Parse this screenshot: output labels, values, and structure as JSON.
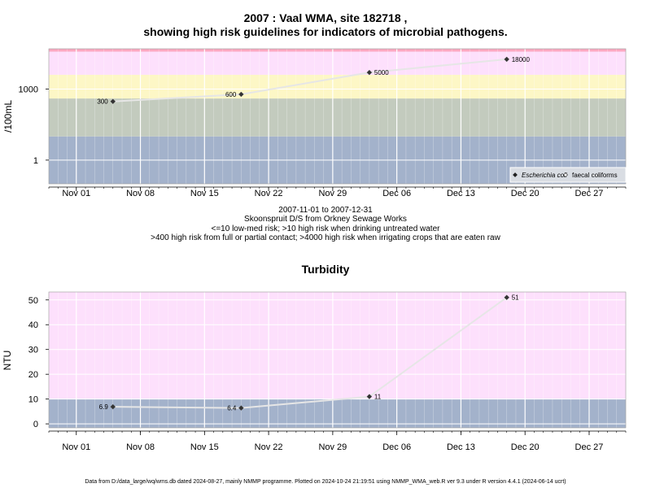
{
  "header": {
    "title_line1": "2007 : Vaal WMA, site 182718 ,",
    "title_line2": "showing high risk guidelines for indicators of microbial pathogens."
  },
  "captions": {
    "date_range": "2007-11-01 to 2007-12-31",
    "site_name": "Skoonspruit D/S from Orkney Sewage Works",
    "risk_line1": "<=10 low-med risk; >10 high risk when drinking untreated water",
    "risk_line2": ">400 high risk from full or partial contact; >4000 high risk when irrigating crops that are eaten raw"
  },
  "footer": "Data from D:/data_large/wq/wms.db dated 2024-08-27, mainly NMMP programme. Plotted on 2024-10-24 21:19:51 using NMMP_WMA_web.R ver 9.3 under R version 4.4.1 (2024-06-14 ucrt)",
  "colors": {
    "band_blue": "#a3b2cb",
    "band_grey": "#c3cbbe",
    "band_yellow": "#fdf7c6",
    "band_pink": "#fde0fc",
    "band_red": "#fca8c1",
    "line": "#e6e6e6",
    "grid": "#ffffff"
  },
  "chart_data": [
    {
      "type": "line",
      "title": "",
      "xlabel": "",
      "ylabel": "/100mL",
      "yscale": "log10",
      "xlim": [
        "2007-10-29",
        "2007-12-31"
      ],
      "x_ticks": [
        {
          "date": "2007-11-01",
          "label": "Nov 01"
        },
        {
          "date": "2007-11-08",
          "label": "Nov 08"
        },
        {
          "date": "2007-11-15",
          "label": "Nov 15"
        },
        {
          "date": "2007-11-22",
          "label": "Nov 22"
        },
        {
          "date": "2007-11-29",
          "label": "Nov 29"
        },
        {
          "date": "2007-12-06",
          "label": "Dec 06"
        },
        {
          "date": "2007-12-13",
          "label": "Dec 13"
        },
        {
          "date": "2007-12-20",
          "label": "Dec 20"
        },
        {
          "date": "2007-12-27",
          "label": "Dec 27"
        }
      ],
      "y_ticks": [
        {
          "value": 1,
          "label": "1"
        },
        {
          "value": 1000,
          "label": "1000"
        }
      ],
      "bands": [
        {
          "from": 0.1,
          "to": 10,
          "color": "#a3b2cb"
        },
        {
          "from": 10,
          "to": 400,
          "color": "#c3cbbe"
        },
        {
          "from": 400,
          "to": 4000,
          "color": "#fdf7c6"
        },
        {
          "from": 4000,
          "to": 38000,
          "color": "#fde0fc"
        },
        {
          "from": 38000,
          "to": 50000,
          "color": "#fca8c1"
        }
      ],
      "legend_position": "bottom-right",
      "legend": [
        {
          "label": "Escherichia coli",
          "italic": true,
          "marker": "filled-diamond"
        },
        {
          "label": "faecal coliforms",
          "italic": false,
          "marker": "open-diamond"
        }
      ],
      "series": [
        {
          "name": "Escherichia coli",
          "points": [
            {
              "x": "2007-11-05",
              "y": 300,
              "label": "300"
            },
            {
              "x": "2007-11-19",
              "y": 600,
              "label": "600"
            },
            {
              "x": "2007-12-03",
              "y": 5000,
              "label": "5000"
            },
            {
              "x": "2007-12-18",
              "y": 18000,
              "label": "18000"
            }
          ]
        }
      ]
    },
    {
      "type": "line",
      "title": "Turbidity",
      "xlabel": "",
      "ylabel": "NTU",
      "ylim": [
        -1.6,
        53.2
      ],
      "xlim": [
        "2007-10-29",
        "2007-12-31"
      ],
      "x_ticks": [
        {
          "date": "2007-11-01",
          "label": "Nov 01"
        },
        {
          "date": "2007-11-08",
          "label": "Nov 08"
        },
        {
          "date": "2007-11-15",
          "label": "Nov 15"
        },
        {
          "date": "2007-11-22",
          "label": "Nov 22"
        },
        {
          "date": "2007-11-29",
          "label": "Nov 29"
        },
        {
          "date": "2007-12-06",
          "label": "Dec 06"
        },
        {
          "date": "2007-12-13",
          "label": "Dec 13"
        },
        {
          "date": "2007-12-20",
          "label": "Dec 20"
        },
        {
          "date": "2007-12-27",
          "label": "Dec 27"
        }
      ],
      "y_ticks": [
        {
          "value": 0,
          "label": "0"
        },
        {
          "value": 10,
          "label": "10"
        },
        {
          "value": 20,
          "label": "20"
        },
        {
          "value": 30,
          "label": "30"
        },
        {
          "value": 40,
          "label": "40"
        },
        {
          "value": 50,
          "label": "50"
        }
      ],
      "bands": [
        {
          "from": -1.6,
          "to": 10,
          "color": "#a3b2cb"
        },
        {
          "from": 10,
          "to": 53.2,
          "color": "#fde0fc"
        }
      ],
      "series": [
        {
          "name": "",
          "points": [
            {
              "x": "2007-11-05",
              "y": 6.9,
              "label": "6.9"
            },
            {
              "x": "2007-11-19",
              "y": 6.4,
              "label": "6.4"
            },
            {
              "x": "2007-12-03",
              "y": 11,
              "label": "11"
            },
            {
              "x": "2007-12-18",
              "y": 51,
              "label": "51"
            }
          ]
        }
      ]
    }
  ]
}
